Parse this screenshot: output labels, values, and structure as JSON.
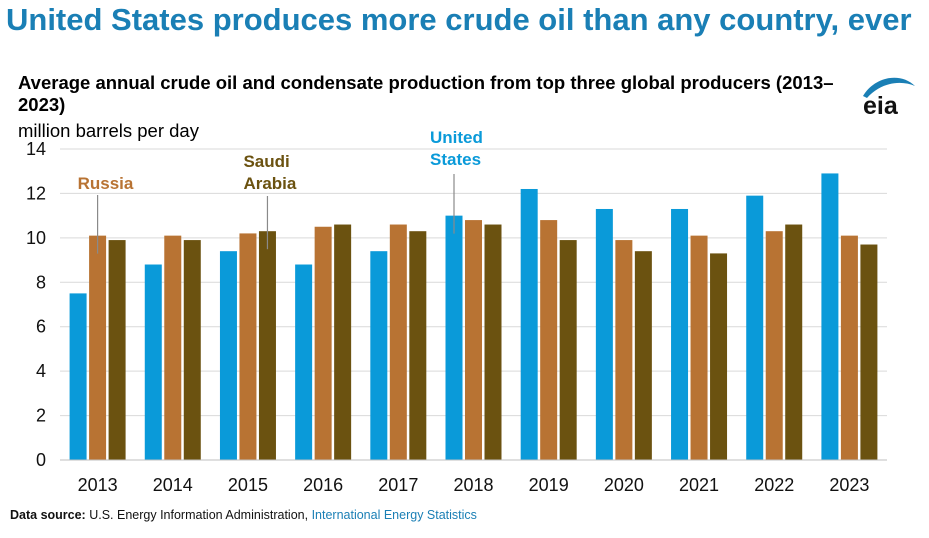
{
  "headline": "United States produces more crude oil than any country, ever",
  "logo_text": "eia",
  "source": {
    "label": "Data source:",
    "text": "U.S. Energy Information Administration,",
    "link_text": "International Energy Statistics"
  },
  "colors": {
    "united_states": "#0a9ad9",
    "russia": "#b87333",
    "saudi_arabia": "#6b5210",
    "headline": "#1a7fb5",
    "gridline": "#d9d9d9"
  },
  "chart_data": {
    "type": "bar",
    "title": "Average annual crude oil and condensate production from top three global producers (2013–2023)",
    "ylabel": "million barrels per day",
    "xlabel": "",
    "ylim": [
      0,
      14
    ],
    "yticks": [
      0,
      2,
      4,
      6,
      8,
      10,
      12,
      14
    ],
    "grid": true,
    "legend": "inline annotations",
    "categories": [
      "2013",
      "2014",
      "2015",
      "2016",
      "2017",
      "2018",
      "2019",
      "2020",
      "2021",
      "2022",
      "2023"
    ],
    "series": [
      {
        "name": "United States",
        "color": "#0a9ad9",
        "values": [
          7.5,
          8.8,
          9.4,
          8.8,
          9.4,
          11.0,
          12.2,
          11.3,
          11.3,
          11.9,
          12.9
        ]
      },
      {
        "name": "Russia",
        "color": "#b87333",
        "values": [
          10.1,
          10.1,
          10.2,
          10.5,
          10.6,
          10.8,
          10.8,
          9.9,
          10.1,
          10.3,
          10.1
        ]
      },
      {
        "name": "Saudi Arabia",
        "color": "#6b5210",
        "values": [
          9.9,
          9.9,
          10.3,
          10.6,
          10.3,
          10.6,
          9.9,
          9.4,
          9.3,
          10.6,
          9.7
        ]
      }
    ],
    "annotations": [
      {
        "series": "Russia",
        "text": [
          "Russia"
        ],
        "category": "2013"
      },
      {
        "series": "Saudi Arabia",
        "text": [
          "Saudi",
          "Arabia"
        ],
        "category": "2015"
      },
      {
        "series": "United States",
        "text": [
          "United",
          "States"
        ],
        "category": "2018"
      }
    ]
  }
}
